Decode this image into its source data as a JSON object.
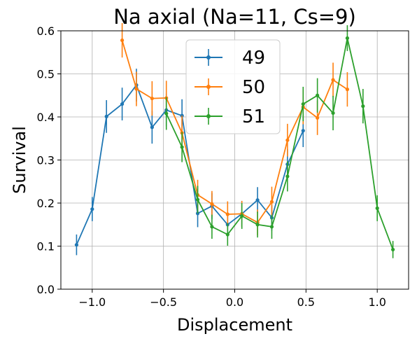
{
  "chart_data": {
    "type": "line",
    "title": "Na axial (Na=11, Cs=9)",
    "xlabel": "Displacement",
    "ylabel": "Survival",
    "xlim": [
      -1.22,
      1.22
    ],
    "ylim": [
      0.0,
      0.6
    ],
    "xticks": [
      -1.0,
      -0.5,
      0.0,
      0.5,
      1.0
    ],
    "xtick_labels": [
      "−1.0",
      "−0.5",
      "0.0",
      "0.5",
      "1.0"
    ],
    "yticks": [
      0.0,
      0.1,
      0.2,
      0.3,
      0.4,
      0.5,
      0.6
    ],
    "ytick_labels": [
      "0.0",
      "0.1",
      "0.2",
      "0.3",
      "0.4",
      "0.5",
      "0.6"
    ],
    "grid": true,
    "legend_position": "top-center",
    "series": [
      {
        "name": "49",
        "color": "#1f77b4",
        "x": [
          -1.11,
          -1.0,
          -0.9,
          -0.79,
          -0.69,
          -0.58,
          -0.48,
          -0.37,
          -0.26,
          -0.16,
          -0.05,
          0.05,
          0.16,
          0.26,
          0.37,
          0.48
        ],
        "y": [
          0.103,
          0.186,
          0.401,
          0.43,
          0.474,
          0.376,
          0.416,
          0.403,
          0.176,
          0.193,
          0.15,
          0.175,
          0.207,
          0.166,
          0.29,
          0.368
        ],
        "err": [
          0.024,
          0.028,
          0.038,
          0.038,
          0.038,
          0.038,
          0.038,
          0.038,
          0.032,
          0.03,
          0.028,
          0.03,
          0.03,
          0.03,
          0.035,
          0.038
        ]
      },
      {
        "name": "50",
        "color": "#ff7f0e",
        "x": [
          -0.79,
          -0.69,
          -0.58,
          -0.48,
          -0.37,
          -0.26,
          -0.16,
          -0.05,
          0.05,
          0.16,
          0.26,
          0.37,
          0.48,
          0.58,
          0.69,
          0.79
        ],
        "y": [
          0.578,
          0.465,
          0.443,
          0.444,
          0.363,
          0.219,
          0.198,
          0.174,
          0.175,
          0.155,
          0.203,
          0.346,
          0.423,
          0.398,
          0.486,
          0.464
        ],
        "err": [
          0.04,
          0.04,
          0.04,
          0.04,
          0.04,
          0.035,
          0.03,
          0.03,
          0.03,
          0.03,
          0.035,
          0.038,
          0.04,
          0.04,
          0.04,
          0.04
        ]
      },
      {
        "name": "51",
        "color": "#2ca02c",
        "x": [
          -0.48,
          -0.37,
          -0.26,
          -0.16,
          -0.05,
          0.05,
          0.16,
          0.26,
          0.37,
          0.48,
          0.58,
          0.69,
          0.79,
          0.9,
          1.0,
          1.11
        ],
        "y": [
          0.408,
          0.33,
          0.208,
          0.145,
          0.127,
          0.17,
          0.15,
          0.145,
          0.262,
          0.43,
          0.45,
          0.409,
          0.583,
          0.425,
          0.188,
          0.092
        ],
        "err": [
          0.038,
          0.035,
          0.032,
          0.028,
          0.026,
          0.03,
          0.03,
          0.028,
          0.035,
          0.04,
          0.04,
          0.04,
          0.03,
          0.04,
          0.03,
          0.02
        ]
      }
    ]
  }
}
